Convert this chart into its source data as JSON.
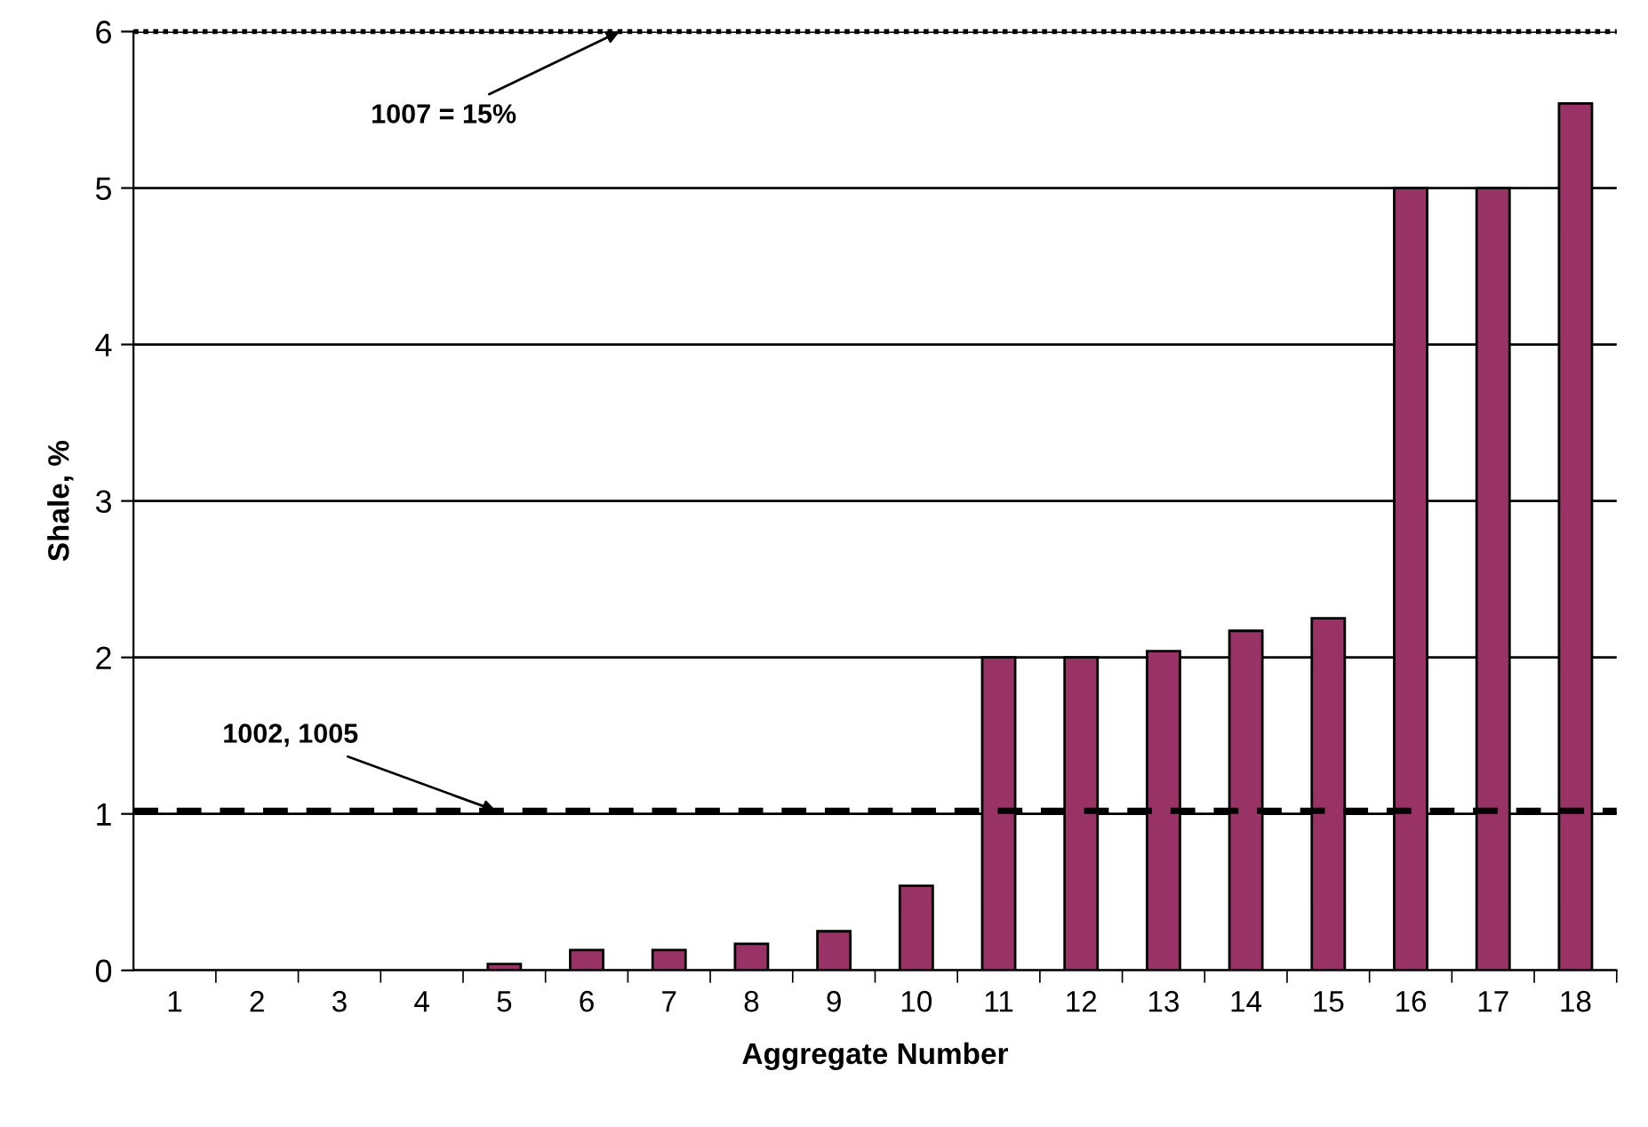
{
  "chart_data": {
    "type": "bar",
    "xlabel": "Aggregate Number",
    "ylabel": "Shale, %",
    "categories": [
      "1",
      "2",
      "3",
      "4",
      "5",
      "6",
      "7",
      "8",
      "9",
      "10",
      "11",
      "12",
      "13",
      "14",
      "15",
      "16",
      "17",
      "18"
    ],
    "values": [
      0,
      0,
      0,
      0,
      0.04,
      0.13,
      0.13,
      0.17,
      0.25,
      0.54,
      2.0,
      2.0,
      2.04,
      2.17,
      2.25,
      5.0,
      5.0,
      5.54
    ],
    "color": "#993366",
    "ylim": [
      0,
      6
    ],
    "yticks": [
      0,
      1,
      2,
      3,
      4,
      5,
      6
    ],
    "grid": "y",
    "legend": false,
    "ref_lines": [
      {
        "axis": "y",
        "value": 6,
        "line_style": "dotted",
        "color": "#000000"
      },
      {
        "axis": "y",
        "value": 1.02,
        "line_style": "dashed",
        "color": "#000000"
      }
    ],
    "annotations": [
      {
        "text": "1007 = 15%",
        "y": 6
      },
      {
        "text": "1002, 1005",
        "y": 1.02
      }
    ]
  }
}
